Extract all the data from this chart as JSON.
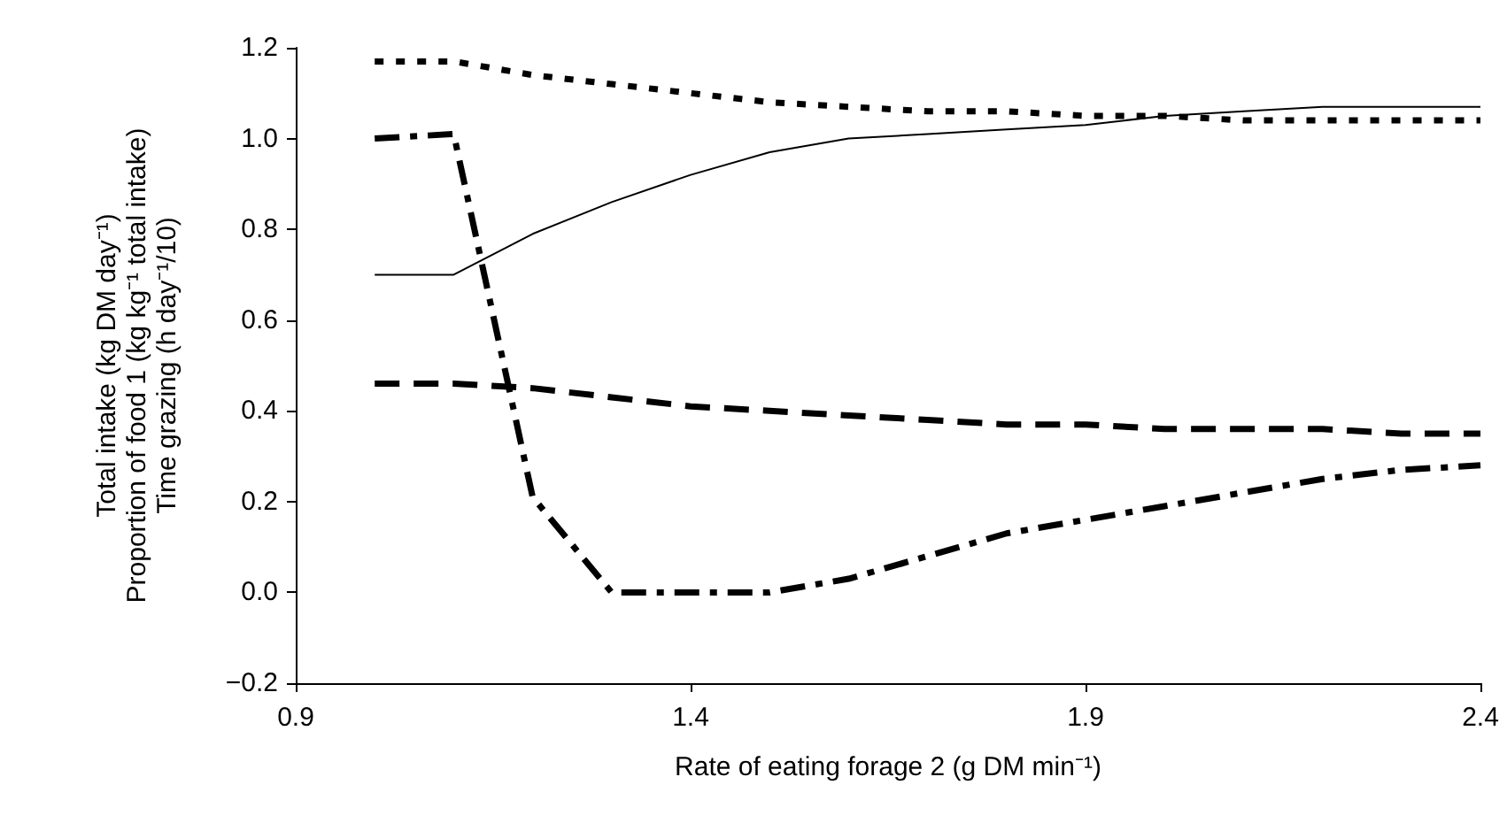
{
  "chart_data": {
    "type": "line",
    "xlabel": "Rate of eating forage 2 (g DM min⁻¹)",
    "ylabel": "Total intake (kg DM day⁻¹)\nProportion of food 1 (kg kg⁻¹ total intake)\nTime grazing (h day⁻¹/10)",
    "x": [
      1.0,
      1.1,
      1.2,
      1.3,
      1.4,
      1.5,
      1.6,
      1.7,
      1.8,
      1.9,
      2.0,
      2.1,
      2.2,
      2.3,
      2.4
    ],
    "series": [
      {
        "color": "#000000",
        "line_style": "dotted",
        "values": [
          1.17,
          1.17,
          1.14,
          1.12,
          1.1,
          1.08,
          1.07,
          1.06,
          1.06,
          1.05,
          1.05,
          1.04,
          1.04,
          1.04,
          1.04
        ]
      },
      {
        "color": "#000000",
        "line_style": "solid",
        "values": [
          0.7,
          0.7,
          0.79,
          0.86,
          0.92,
          0.97,
          1.0,
          1.01,
          1.02,
          1.03,
          1.05,
          1.06,
          1.07,
          1.07,
          1.07
        ]
      },
      {
        "color": "#000000",
        "line_style": "dashed",
        "values": [
          0.46,
          0.46,
          0.45,
          0.43,
          0.41,
          0.4,
          0.39,
          0.38,
          0.37,
          0.37,
          0.36,
          0.36,
          0.36,
          0.35,
          0.35
        ]
      },
      {
        "color": "#000000",
        "line_style": "dashdot",
        "values": [
          1.0,
          1.01,
          0.21,
          0.0,
          0.0,
          0.0,
          0.03,
          0.08,
          0.13,
          0.16,
          0.19,
          0.22,
          0.25,
          0.27,
          0.28
        ]
      }
    ],
    "xlim": [
      0.9,
      2.4
    ],
    "xticks": [
      0.9,
      1.4,
      1.9,
      2.4
    ],
    "ylim": [
      -0.2,
      1.2
    ],
    "yticks": [
      {
        "value": -0.2,
        "label": "−0.2"
      },
      {
        "value": 0,
        "label": "0.0"
      },
      {
        "value": 0.2,
        "label": "0.2"
      },
      {
        "value": 0.4,
        "label": "0.4"
      },
      {
        "value": 0.6,
        "label": "0.6"
      },
      {
        "value": 0.8,
        "label": "0.8"
      },
      {
        "value": 1.0,
        "label": "1.0"
      },
      {
        "value": 1.2,
        "label": "1.2"
      }
    ],
    "grid": false,
    "marker": "none"
  }
}
